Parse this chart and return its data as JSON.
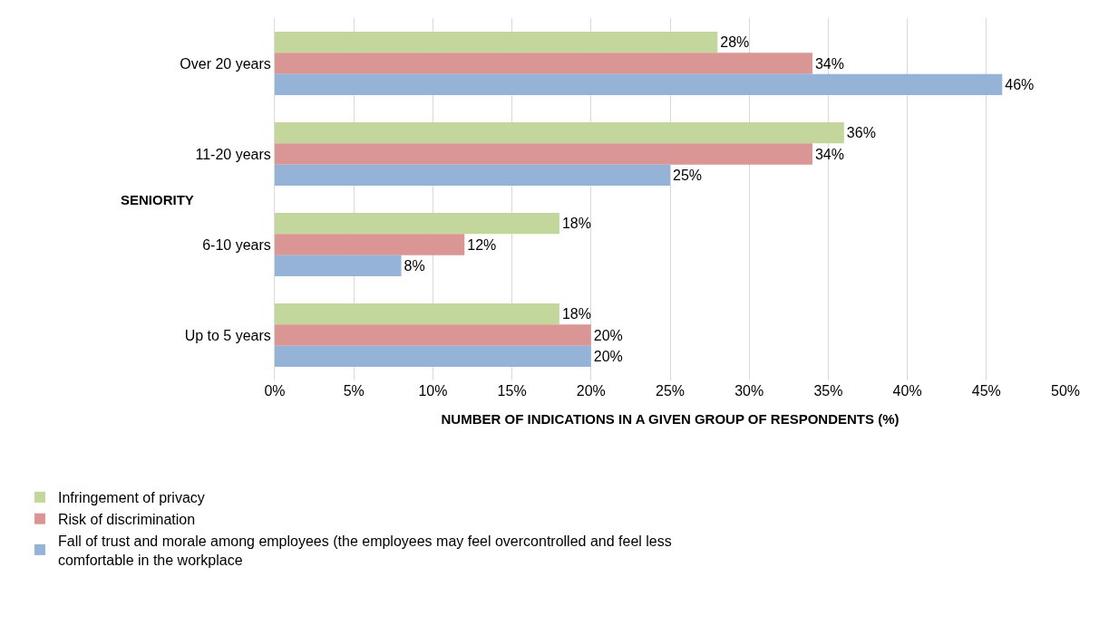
{
  "chart_data": {
    "type": "bar",
    "orientation": "horizontal",
    "xlabel": "NUMBER OF INDICATIONS IN A GIVEN GROUP OF RESPONDENTS (%)",
    "ylabel": "SENIORITY",
    "categories": [
      "Over 20 years",
      "11-20 years",
      "6-10 years",
      "Up to 5 years"
    ],
    "series": [
      {
        "name": "Infringement of privacy",
        "color": "#c3d69b",
        "values": [
          28,
          36,
          18,
          18
        ],
        "value_labels": [
          "28%",
          "36%",
          "18%",
          "18%"
        ]
      },
      {
        "name": "Risk of discrimination",
        "color": "#d99694",
        "values": [
          34,
          34,
          12,
          20
        ],
        "value_labels": [
          "34%",
          "34%",
          "12%",
          "20%"
        ]
      },
      {
        "name": "Fall of trust and morale among employees (the employees may feel overcontrolled and feel less comfortable in the workplace",
        "color": "#95b3d7",
        "values": [
          46,
          25,
          8,
          20
        ],
        "value_labels": [
          "46%",
          "25%",
          "8%",
          "20%"
        ]
      }
    ],
    "xlim": [
      0,
      50
    ],
    "xticks": [
      {
        "value": 0,
        "label": "0%"
      },
      {
        "value": 5,
        "label": "5%"
      },
      {
        "value": 10,
        "label": "10%"
      },
      {
        "value": 15,
        "label": "15%"
      },
      {
        "value": 20,
        "label": "20%"
      },
      {
        "value": 25,
        "label": "25%"
      },
      {
        "value": 30,
        "label": "30%"
      },
      {
        "value": 35,
        "label": "35%"
      },
      {
        "value": 40,
        "label": "40%"
      },
      {
        "value": 45,
        "label": "45%"
      },
      {
        "value": 50,
        "label": "50%"
      }
    ],
    "grid": "x",
    "legend": "bottom left"
  }
}
